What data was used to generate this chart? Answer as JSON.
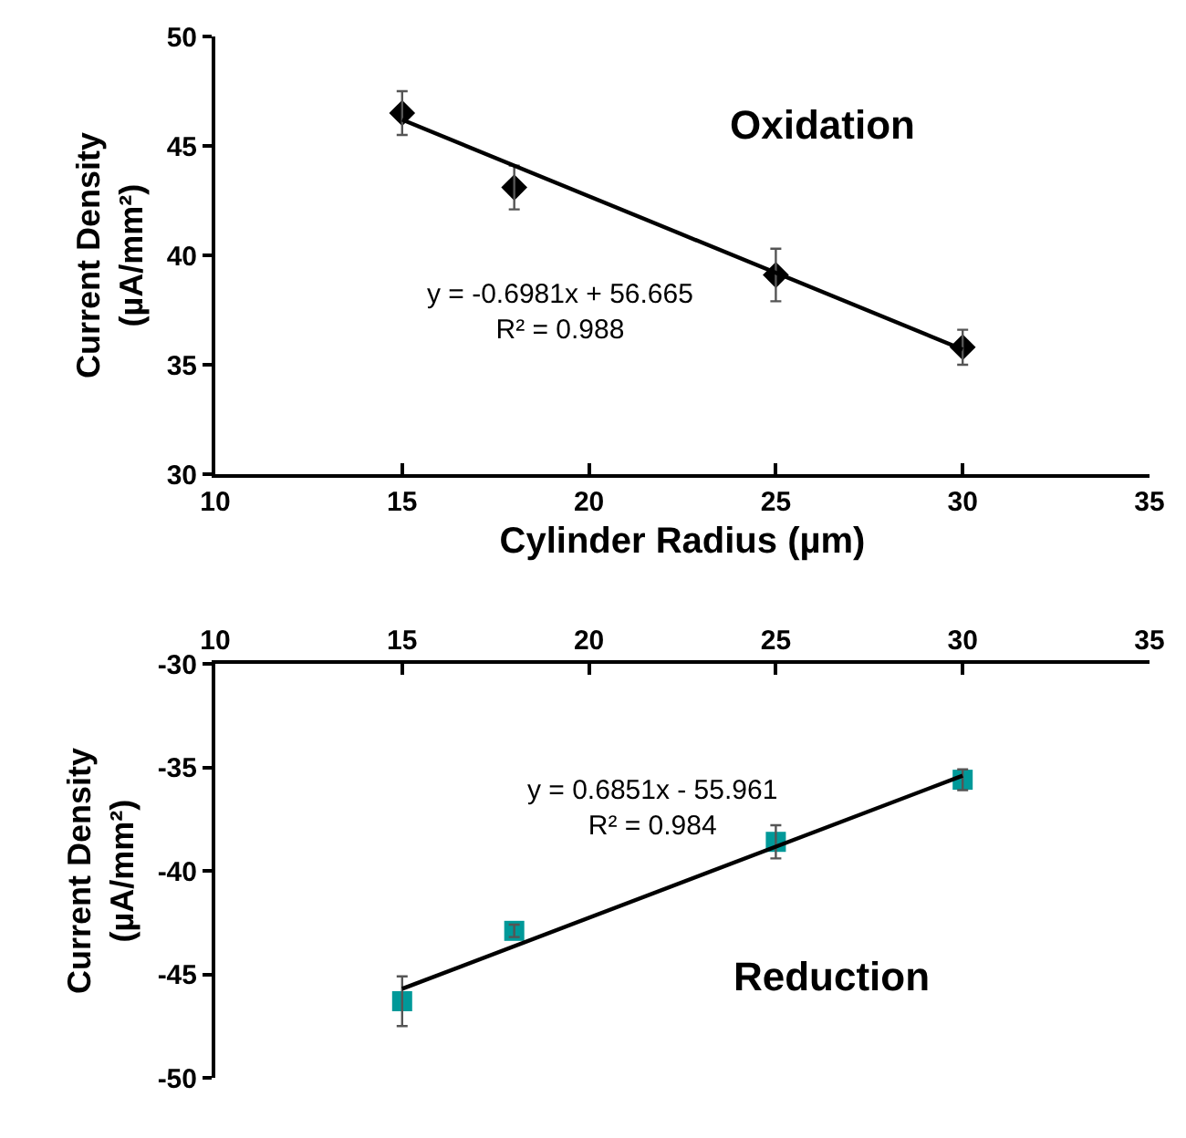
{
  "chart_data": [
    {
      "type": "scatter",
      "xlabel": "Cylinder Radius (µm)",
      "ylabel": "Current Density\n(µA/mm²)",
      "xlim": [
        10,
        35
      ],
      "xticks": [
        10,
        15,
        20,
        25,
        30,
        35
      ],
      "ylim": [
        30,
        50
      ],
      "yticks": [
        30,
        35,
        40,
        45,
        50
      ],
      "marker": "diamond",
      "annotations": [
        "Oxidation",
        "y = -0.6981x + 56.665\nR² = 0.988"
      ],
      "series": [
        {
          "type": "scatter",
          "color": "#000000",
          "x": [
            15,
            18,
            25,
            30
          ],
          "values": [
            46.5,
            43.1,
            39.1,
            35.8
          ],
          "errors": [
            1.0,
            1.0,
            1.2,
            0.8
          ]
        },
        {
          "type": "line",
          "color": "#000000",
          "x": [
            15,
            30
          ],
          "values": [
            46.2,
            35.7
          ],
          "line_style": "solid",
          "marker": "none"
        }
      ]
    },
    {
      "type": "scatter",
      "ylabel": "Current Density\n(µA/mm²)",
      "xlim": [
        10,
        35
      ],
      "xticks": [
        10,
        15,
        20,
        25,
        30,
        35
      ],
      "ylim": [
        -50,
        -30
      ],
      "yticks": [
        -50,
        -45,
        -40,
        -35,
        -30
      ],
      "marker": "square",
      "annotations": [
        "Reduction",
        "y = 0.6851x - 55.961\nR² = 0.984"
      ],
      "series": [
        {
          "type": "scatter",
          "color": "#009999",
          "x": [
            15,
            18,
            25,
            30
          ],
          "values": [
            -46.3,
            -42.9,
            -38.6,
            -35.6
          ],
          "errors": [
            1.2,
            0.3,
            0.8,
            0.5
          ]
        },
        {
          "type": "line",
          "color": "#000000",
          "x": [
            15,
            30
          ],
          "values": [
            -45.7,
            -35.4
          ],
          "line_style": "solid",
          "marker": "none"
        }
      ]
    }
  ]
}
